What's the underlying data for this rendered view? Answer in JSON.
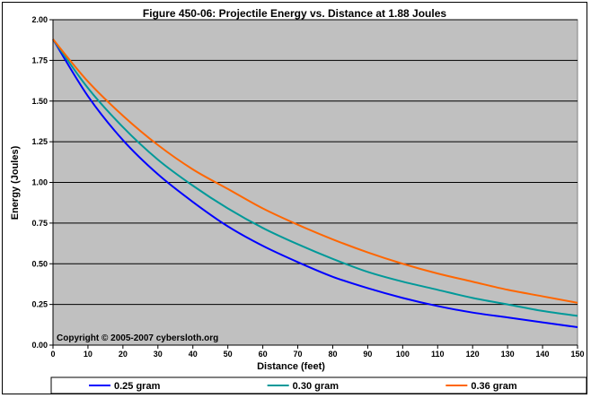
{
  "chart_data": {
    "type": "line",
    "title": "Figure 450-06:  Projectile Energy vs. Distance at 1.88 Joules",
    "xlabel": "Distance (feet)",
    "ylabel": "Energy (Joules)",
    "xlim": [
      0,
      150
    ],
    "ylim": [
      0,
      2.0
    ],
    "x_ticks": [
      "0",
      "10",
      "20",
      "30",
      "40",
      "50",
      "60",
      "70",
      "80",
      "90",
      "100",
      "110",
      "120",
      "130",
      "140",
      "150"
    ],
    "y_ticks": [
      "0.00",
      "0.25",
      "0.50",
      "0.75",
      "1.00",
      "1.25",
      "1.50",
      "1.75",
      "2.00"
    ],
    "grid": "horizontal",
    "legend_position": "bottom",
    "annotation": "Copyright © 2005-2007 cybersloth.org",
    "x": [
      0,
      10,
      20,
      30,
      40,
      50,
      60,
      70,
      80,
      90,
      100,
      110,
      120,
      130,
      140,
      150
    ],
    "series": [
      {
        "name": "0.25 gram",
        "color": "#0000ff",
        "values": [
          1.88,
          1.53,
          1.26,
          1.05,
          0.88,
          0.73,
          0.61,
          0.51,
          0.42,
          0.35,
          0.29,
          0.24,
          0.2,
          0.17,
          0.14,
          0.11
        ]
      },
      {
        "name": "0.30 gram",
        "color": "#009999",
        "values": [
          1.88,
          1.58,
          1.34,
          1.14,
          0.98,
          0.84,
          0.72,
          0.62,
          0.53,
          0.45,
          0.39,
          0.34,
          0.29,
          0.25,
          0.21,
          0.18
        ]
      },
      {
        "name": "0.36 gram",
        "color": "#ff6600",
        "values": [
          1.88,
          1.62,
          1.41,
          1.23,
          1.08,
          0.96,
          0.84,
          0.74,
          0.65,
          0.57,
          0.5,
          0.44,
          0.39,
          0.34,
          0.3,
          0.26
        ]
      }
    ],
    "colors": {
      "plot_background": "#c0c0c0",
      "grid": "#000000"
    }
  }
}
